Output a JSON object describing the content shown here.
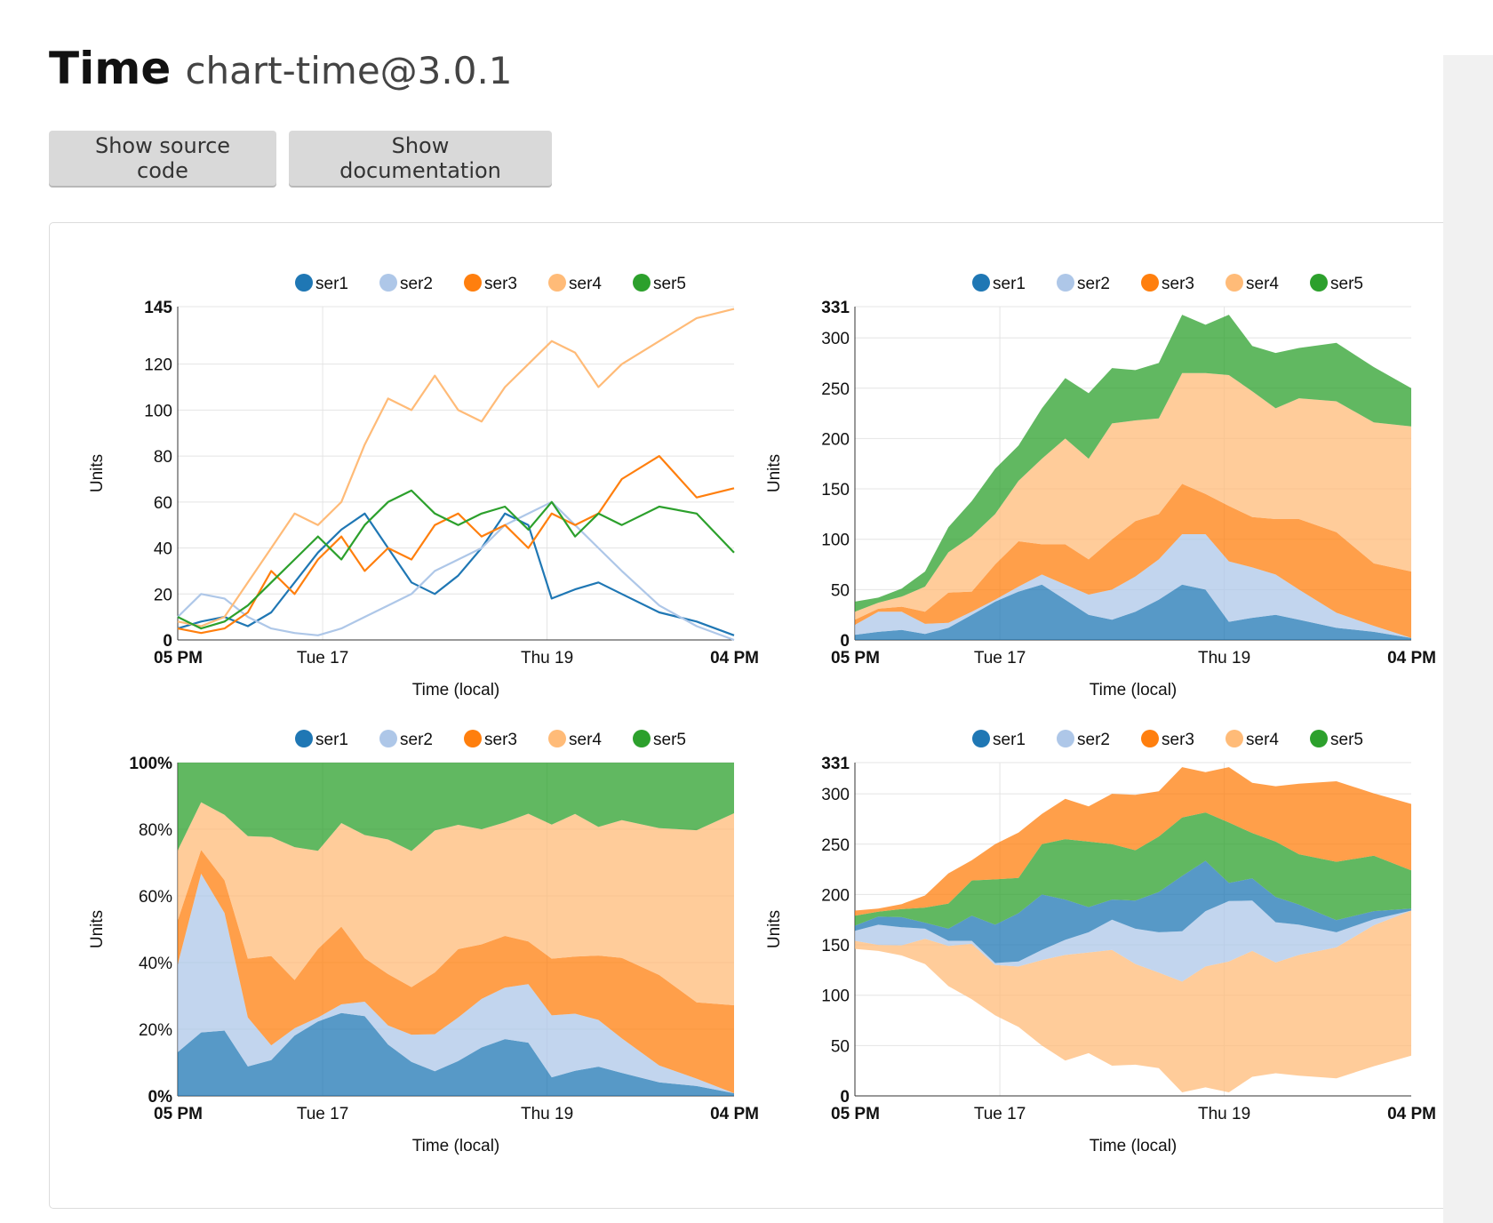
{
  "header": {
    "title": "Time",
    "package": "chart-time@3.0.1"
  },
  "toolbar": {
    "show_source_label": "Show source code",
    "show_docs_label": "Show documentation"
  },
  "colors": {
    "ser1": "#1f77b4",
    "ser2": "#aec7e8",
    "ser3": "#ff7f0e",
    "ser4": "#ffbb78",
    "ser5": "#2ca02c"
  },
  "chart_data": [
    {
      "type": "line",
      "xlabel": "Time (local)",
      "ylabel": "Units",
      "ylim": [
        0,
        145
      ],
      "yticks": [
        "0",
        "20",
        "40",
        "60",
        "80",
        "100",
        "120",
        "145"
      ],
      "xlim": [
        "2019-09-15T17:00",
        "2019-09-20T16:00"
      ],
      "xticks": [
        {
          "t": "2019-09-15T17:00",
          "label": "05 PM",
          "bold": true
        },
        {
          "t": "2019-09-17T00:00",
          "label": "Tue 17",
          "bold": false
        },
        {
          "t": "2019-09-19T00:00",
          "label": "Thu 19",
          "bold": false
        },
        {
          "t": "2019-09-20T16:00",
          "label": "04 PM",
          "bold": true
        }
      ],
      "legend": {
        "position": "top",
        "entries": [
          "ser1",
          "ser2",
          "ser3",
          "ser4",
          "ser5"
        ]
      },
      "x": [
        "2019-09-15T17:00",
        "2019-09-15T22:00",
        "2019-09-16T03:00",
        "2019-09-16T08:00",
        "2019-09-16T13:00",
        "2019-09-16T18:00",
        "2019-09-16T23:00",
        "2019-09-17T04:00",
        "2019-09-17T09:00",
        "2019-09-17T14:00",
        "2019-09-17T19:00",
        "2019-09-18T00:00",
        "2019-09-18T05:00",
        "2019-09-18T10:00",
        "2019-09-18T15:00",
        "2019-09-18T20:00",
        "2019-09-19T01:00",
        "2019-09-19T06:00",
        "2019-09-19T11:00",
        "2019-09-19T16:00",
        "2019-09-20T00:00",
        "2019-09-20T08:00",
        "2019-09-20T16:00"
      ],
      "series": [
        {
          "name": "ser1",
          "values": [
            5,
            8,
            10,
            6,
            12,
            25,
            38,
            48,
            55,
            40,
            25,
            20,
            28,
            40,
            55,
            50,
            18,
            22,
            25,
            20,
            12,
            8,
            2
          ]
        },
        {
          "name": "ser2",
          "values": [
            10,
            20,
            18,
            10,
            5,
            3,
            2,
            5,
            10,
            15,
            20,
            30,
            35,
            40,
            50,
            55,
            60,
            50,
            40,
            30,
            15,
            6,
            0
          ]
        },
        {
          "name": "ser3",
          "values": [
            5,
            3,
            5,
            12,
            30,
            20,
            35,
            45,
            30,
            40,
            35,
            50,
            55,
            45,
            50,
            40,
            55,
            50,
            55,
            70,
            80,
            62,
            66
          ]
        },
        {
          "name": "ser4",
          "values": [
            8,
            6,
            10,
            25,
            40,
            55,
            50,
            60,
            85,
            105,
            100,
            115,
            100,
            95,
            110,
            120,
            130,
            125,
            110,
            120,
            130,
            140,
            144
          ]
        },
        {
          "name": "ser5",
          "values": [
            10,
            5,
            8,
            15,
            25,
            35,
            45,
            35,
            50,
            60,
            65,
            55,
            50,
            55,
            58,
            48,
            60,
            45,
            55,
            50,
            58,
            55,
            38
          ]
        }
      ]
    },
    {
      "type": "area",
      "stacking": "stacked",
      "xlabel": "Time (local)",
      "ylabel": "Units",
      "ylim": [
        0,
        331
      ],
      "yticks": [
        "0",
        "50",
        "100",
        "150",
        "200",
        "250",
        "300",
        "331"
      ],
      "xticks": [
        {
          "t": "2019-09-15T17:00",
          "label": "05 PM",
          "bold": true
        },
        {
          "t": "2019-09-17T00:00",
          "label": "Tue 17",
          "bold": false
        },
        {
          "t": "2019-09-19T00:00",
          "label": "Thu 19",
          "bold": false
        },
        {
          "t": "2019-09-20T16:00",
          "label": "04 PM",
          "bold": true
        }
      ],
      "legend": {
        "position": "top",
        "entries": [
          "ser1",
          "ser2",
          "ser3",
          "ser4",
          "ser5"
        ]
      }
    },
    {
      "type": "area",
      "stacking": "percent",
      "xlabel": "Time (local)",
      "ylabel": "Units",
      "ylim": [
        0,
        100
      ],
      "yticks": [
        "0%",
        "20%",
        "40%",
        "60%",
        "80%",
        "100%"
      ],
      "xticks": [
        {
          "t": "2019-09-15T17:00",
          "label": "05 PM",
          "bold": true
        },
        {
          "t": "2019-09-17T00:00",
          "label": "Tue 17",
          "bold": false
        },
        {
          "t": "2019-09-19T00:00",
          "label": "Thu 19",
          "bold": false
        },
        {
          "t": "2019-09-20T16:00",
          "label": "04 PM",
          "bold": true
        }
      ],
      "legend": {
        "position": "top",
        "entries": [
          "ser1",
          "ser2",
          "ser3",
          "ser4",
          "ser5"
        ]
      }
    },
    {
      "type": "area",
      "stacking": "streamgraph",
      "xlabel": "Time (local)",
      "ylabel": "Units",
      "ylim": [
        0,
        331
      ],
      "yticks": [
        "0",
        "50",
        "100",
        "150",
        "200",
        "250",
        "300",
        "331"
      ],
      "xticks": [
        {
          "t": "2019-09-15T17:00",
          "label": "05 PM",
          "bold": true
        },
        {
          "t": "2019-09-17T00:00",
          "label": "Tue 17",
          "bold": false
        },
        {
          "t": "2019-09-19T00:00",
          "label": "Thu 19",
          "bold": false
        },
        {
          "t": "2019-09-20T16:00",
          "label": "04 PM",
          "bold": true
        }
      ],
      "legend": {
        "position": "top",
        "entries": [
          "ser1",
          "ser2",
          "ser3",
          "ser4",
          "ser5"
        ]
      }
    }
  ]
}
